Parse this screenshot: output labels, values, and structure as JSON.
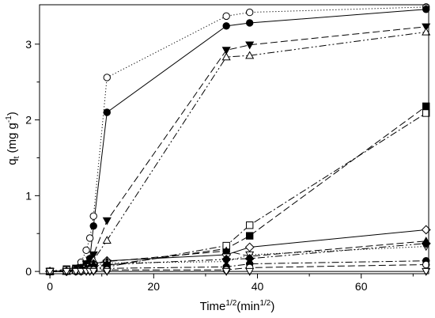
{
  "chart_data": {
    "type": "line",
    "title": "",
    "xlabel": {
      "main": "Time",
      "sup1": "1/2",
      "paren": "(min",
      "sup2": "1/2",
      "close": ")"
    },
    "ylabel": {
      "main": "q",
      "sub": "t",
      "paren": " (mg g",
      "sup": "-1",
      "close": ")"
    },
    "xlim": [
      -2,
      73
    ],
    "ylim": [
      -0.03,
      3.52
    ],
    "xticks": [
      0,
      20,
      40,
      60
    ],
    "yticks": [
      0,
      1,
      2,
      3
    ],
    "grid": false,
    "legend": "none",
    "series": [
      {
        "marker": "circle-open",
        "line": "dotted",
        "points": [
          [
            0,
            0
          ],
          [
            3.2,
            0
          ],
          [
            5,
            0.03
          ],
          [
            6,
            0.12
          ],
          [
            7,
            0.28
          ],
          [
            7.7,
            0.44
          ],
          [
            8.4,
            0.73
          ],
          [
            11,
            2.56
          ],
          [
            34,
            3.37
          ],
          [
            38.5,
            3.42
          ],
          [
            72.5,
            3.49
          ]
        ]
      },
      {
        "marker": "circle-filled",
        "line": "solid",
        "points": [
          [
            0,
            0
          ],
          [
            3.2,
            0.01
          ],
          [
            5,
            0.02
          ],
          [
            6,
            0.05
          ],
          [
            7,
            0.1
          ],
          [
            7.7,
            0.17
          ],
          [
            8.4,
            0.6
          ],
          [
            11,
            2.1
          ],
          [
            34,
            3.24
          ],
          [
            38.5,
            3.28
          ],
          [
            72.5,
            3.46
          ]
        ]
      },
      {
        "marker": "triangle-down-filled",
        "line": "long-dash",
        "points": [
          [
            0,
            0
          ],
          [
            3.2,
            0
          ],
          [
            5,
            0.02
          ],
          [
            6,
            0.05
          ],
          [
            7,
            0.1
          ],
          [
            7.7,
            0.15
          ],
          [
            8.4,
            0.22
          ],
          [
            11,
            0.67
          ],
          [
            34,
            2.92
          ],
          [
            38.5,
            2.99
          ],
          [
            72.5,
            3.23
          ]
        ]
      },
      {
        "marker": "triangle-up-open",
        "line": "dash-dot-dot",
        "points": [
          [
            0,
            0
          ],
          [
            3.2,
            0
          ],
          [
            5,
            0.02
          ],
          [
            6,
            0.04
          ],
          [
            7,
            0.07
          ],
          [
            7.7,
            0.1
          ],
          [
            8.4,
            0.15
          ],
          [
            11,
            0.41
          ],
          [
            34,
            2.83
          ],
          [
            38.5,
            2.85
          ],
          [
            72.5,
            3.16
          ]
        ]
      },
      {
        "marker": "square-filled",
        "line": "long-dash",
        "points": [
          [
            0,
            0
          ],
          [
            3.2,
            0.03
          ],
          [
            5,
            0.04
          ],
          [
            6,
            0.04
          ],
          [
            7,
            0.05
          ],
          [
            7.7,
            0.05
          ],
          [
            8.4,
            0.06
          ],
          [
            11,
            0.08
          ],
          [
            34,
            0.3
          ],
          [
            38.5,
            0.47
          ],
          [
            72.5,
            2.18
          ]
        ]
      },
      {
        "marker": "square-open",
        "line": "dash-dot",
        "points": [
          [
            0,
            0
          ],
          [
            3.2,
            0.02
          ],
          [
            5,
            0.02
          ],
          [
            6,
            0.03
          ],
          [
            7,
            0.03
          ],
          [
            7.7,
            0.04
          ],
          [
            8.4,
            0.04
          ],
          [
            11,
            0.06
          ],
          [
            34,
            0.34
          ],
          [
            38.5,
            0.61
          ],
          [
            72.5,
            2.09
          ]
        ]
      },
      {
        "marker": "diamond-open",
        "line": "solid",
        "points": [
          [
            0,
            0
          ],
          [
            3.2,
            0
          ],
          [
            5,
            0.02
          ],
          [
            6,
            0.04
          ],
          [
            7,
            0.06
          ],
          [
            7.7,
            0.08
          ],
          [
            8.4,
            0.1
          ],
          [
            11,
            0.14
          ],
          [
            34,
            0.22
          ],
          [
            38.5,
            0.32
          ],
          [
            72.5,
            0.55
          ]
        ]
      },
      {
        "marker": "triangle-up-filled",
        "line": "long-dash",
        "points": [
          [
            0,
            0
          ],
          [
            3.2,
            0
          ],
          [
            5,
            0.02
          ],
          [
            6,
            0.04
          ],
          [
            7,
            0.06
          ],
          [
            7.7,
            0.08
          ],
          [
            8.4,
            0.1
          ],
          [
            11,
            0.13
          ],
          [
            34,
            0.27
          ],
          [
            38.5,
            0.2
          ],
          [
            72.5,
            0.4
          ]
        ]
      },
      {
        "marker": "triangle-down-open",
        "line": "dotted",
        "points": [
          [
            0,
            0
          ],
          [
            3.2,
            0
          ],
          [
            5,
            0.01
          ],
          [
            6,
            0.02
          ],
          [
            7,
            0.04
          ],
          [
            7.7,
            0.06
          ],
          [
            8.4,
            0.08
          ],
          [
            11,
            0.11
          ],
          [
            34,
            0.13
          ],
          [
            38.5,
            0.22
          ],
          [
            72.5,
            0.33
          ]
        ]
      },
      {
        "marker": "diamond-filled",
        "line": "dash-dot-dot",
        "points": [
          [
            0,
            0
          ],
          [
            3.2,
            0
          ],
          [
            5,
            0.01
          ],
          [
            6,
            0.02
          ],
          [
            7,
            0.03
          ],
          [
            7.7,
            0.05
          ],
          [
            8.4,
            0.07
          ],
          [
            11,
            0.09
          ],
          [
            34,
            0.16
          ],
          [
            38.5,
            0.17
          ],
          [
            72.5,
            0.37
          ]
        ]
      },
      {
        "marker": "circle-filled",
        "line": "dash-dot",
        "points": [
          [
            0,
            0
          ],
          [
            3.2,
            0
          ],
          [
            5,
            0
          ],
          [
            6,
            0.01
          ],
          [
            7,
            0.02
          ],
          [
            7.7,
            0.03
          ],
          [
            8.4,
            0.03
          ],
          [
            11,
            0.04
          ],
          [
            34,
            0.06
          ],
          [
            38.5,
            0.1
          ],
          [
            72.5,
            0.14
          ]
        ]
      },
      {
        "marker": "circle-open",
        "line": "long-dash",
        "points": [
          [
            0,
            0
          ],
          [
            3.2,
            0
          ],
          [
            5,
            0
          ],
          [
            6,
            0
          ],
          [
            7,
            0.01
          ],
          [
            7.7,
            0.02
          ],
          [
            8.4,
            0.02
          ],
          [
            11,
            0.02
          ],
          [
            34,
            0.02
          ],
          [
            38.5,
            0.05
          ],
          [
            72.5,
            0.09
          ]
        ]
      },
      {
        "marker": "triangle-down-open",
        "line": "solid",
        "points": [
          [
            0,
            0
          ],
          [
            3.2,
            0
          ],
          [
            5,
            0
          ],
          [
            6,
            0
          ],
          [
            7,
            0
          ],
          [
            7.7,
            0
          ],
          [
            8.4,
            0
          ],
          [
            11,
            0
          ],
          [
            34,
            0
          ],
          [
            38.5,
            0
          ],
          [
            72.5,
            0
          ]
        ]
      }
    ]
  }
}
